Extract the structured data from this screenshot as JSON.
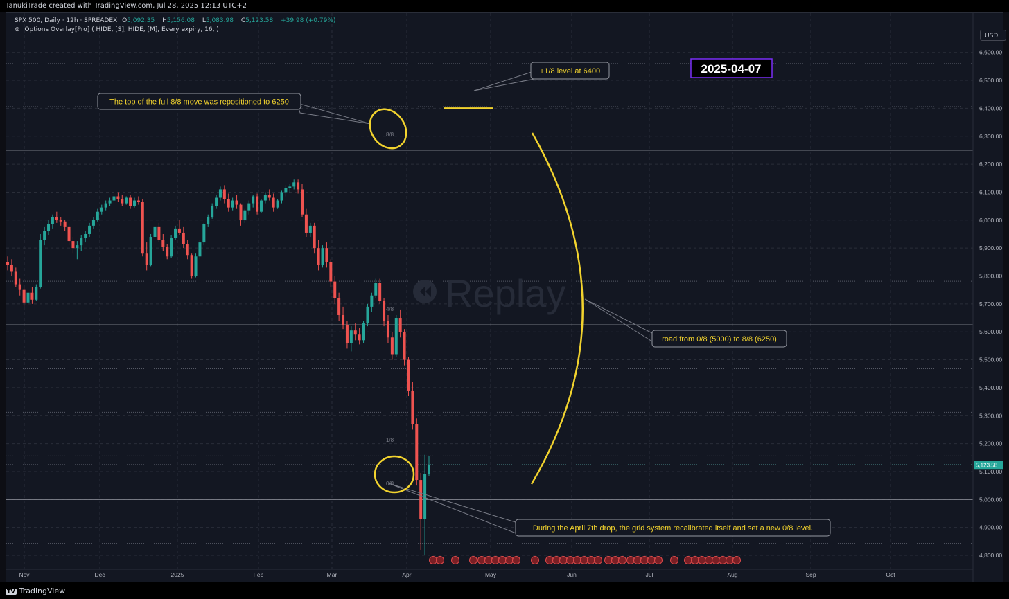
{
  "header": {
    "created_by": "TanukiTrade created with TradingView.com, Jul 28, 2025 12:13 UTC+2"
  },
  "legend": {
    "symbol": "SPX 500, Daily · 12h · SPREADEX",
    "open_label": "O",
    "open": "5,092.35",
    "high_label": "H",
    "high": "5,156.08",
    "low_label": "L",
    "low": "5,083.98",
    "close_label": "C",
    "close": "5,123.58",
    "change": "+39.98 (+0.79%)",
    "indicator": "Options Overlay[Pro] ( HIDE, [S], HIDE, [M], Every expiry, 16, )"
  },
  "currency": "USD",
  "watermark": "Replay",
  "date_box": "2025-04-07",
  "colors": {
    "up": "#26a69a",
    "down": "#ef5350",
    "annotation": "#f2d32e",
    "date_box_border": "#7b2ff7",
    "level_line": "#9598a1",
    "price_tag": "#26a69a"
  },
  "annotations": {
    "top_note": "The top of the full 8/8 move was repositioned to 6250",
    "plus_level": "+1/8 level at 6400",
    "road": "road from 0/8 (5000) to 8/8 (6250)",
    "bottom_note": "During the April 7th drop, the grid system recalibrated itself and set a new 0/8 level."
  },
  "grid_labels": [
    "8/8",
    "4/8",
    "1/8",
    "0/8"
  ],
  "footer": {
    "brand": "TradingView"
  },
  "chart_data": {
    "type": "candlestick",
    "symbol": "SPX 500",
    "interval": "Daily",
    "y_ticks": [
      4800,
      4900,
      5000,
      5100,
      5200,
      5300,
      5400,
      5500,
      5600,
      5700,
      5800,
      5900,
      6000,
      6100,
      6200,
      6300,
      6400,
      6500,
      6600
    ],
    "y_tick_labels": [
      "4,800.00",
      "4,900.00",
      "5,000.00",
      "5,100.00",
      "5,200.00",
      "5,300.00",
      "5,400.00",
      "5,500.00",
      "5,600.00",
      "5,700.00",
      "5,800.00",
      "5,900.00",
      "6,000.00",
      "6,100.00",
      "6,200.00",
      "6,300.00",
      "6,400.00",
      "6,500.00",
      "6,600.00"
    ],
    "x_labels": [
      "Nov",
      "Dec",
      "2025",
      "Feb",
      "Mar",
      "Apr",
      "May",
      "Jun",
      "Jul",
      "Aug",
      "Sep",
      "Oct"
    ],
    "last_price": "5,123.58",
    "horizontal_levels": [
      {
        "label": "8/8",
        "value": 6250
      },
      {
        "label": "4/8",
        "value": 5625
      },
      {
        "label": "0/8",
        "value": 5000
      }
    ],
    "dotted_levels": [
      6560,
      6406,
      5781,
      5468,
      5312,
      5156,
      5125,
      4843
    ],
    "plus_level_value": 6400,
    "series": [
      {
        "name": "SPX 500",
        "ohlc": [
          [
            5850,
            5870,
            5820,
            5840
          ],
          [
            5840,
            5860,
            5800,
            5815
          ],
          [
            5815,
            5830,
            5760,
            5770
          ],
          [
            5770,
            5790,
            5730,
            5750
          ],
          [
            5750,
            5760,
            5690,
            5705
          ],
          [
            5705,
            5745,
            5700,
            5740
          ],
          [
            5740,
            5760,
            5700,
            5715
          ],
          [
            5715,
            5770,
            5710,
            5760
          ],
          [
            5760,
            5950,
            5755,
            5930
          ],
          [
            5930,
            5975,
            5910,
            5960
          ],
          [
            5960,
            6000,
            5945,
            5985
          ],
          [
            5985,
            6020,
            5970,
            6010
          ],
          [
            6010,
            6030,
            5990,
            6000
          ],
          [
            6000,
            6010,
            5980,
            5995
          ],
          [
            5995,
            6000,
            5960,
            5975
          ],
          [
            5975,
            5985,
            5910,
            5925
          ],
          [
            5925,
            5940,
            5880,
            5900
          ],
          [
            5900,
            5925,
            5860,
            5910
          ],
          [
            5910,
            5945,
            5890,
            5935
          ],
          [
            5935,
            5960,
            5920,
            5950
          ],
          [
            5950,
            5990,
            5940,
            5980
          ],
          [
            5980,
            6010,
            5970,
            6000
          ],
          [
            6000,
            6040,
            5995,
            6030
          ],
          [
            6030,
            6055,
            6020,
            6045
          ],
          [
            6045,
            6070,
            6035,
            6060
          ],
          [
            6060,
            6080,
            6050,
            6070
          ],
          [
            6070,
            6095,
            6060,
            6085
          ],
          [
            6085,
            6100,
            6065,
            6075
          ],
          [
            6075,
            6090,
            6050,
            6060
          ],
          [
            6060,
            6085,
            6055,
            6080
          ],
          [
            6080,
            6090,
            6040,
            6050
          ],
          [
            6050,
            6080,
            6045,
            6070
          ],
          [
            6070,
            6085,
            6055,
            6065
          ],
          [
            6065,
            6075,
            5870,
            5880
          ],
          [
            5880,
            5920,
            5820,
            5840
          ],
          [
            5840,
            5950,
            5835,
            5940
          ],
          [
            5940,
            5985,
            5930,
            5975
          ],
          [
            5975,
            5990,
            5920,
            5930
          ],
          [
            5930,
            5950,
            5890,
            5905
          ],
          [
            5905,
            5915,
            5860,
            5870
          ],
          [
            5870,
            5945,
            5865,
            5935
          ],
          [
            5935,
            5980,
            5930,
            5970
          ],
          [
            5970,
            6000,
            5945,
            5955
          ],
          [
            5955,
            5975,
            5900,
            5915
          ],
          [
            5915,
            5930,
            5860,
            5875
          ],
          [
            5875,
            5880,
            5790,
            5800
          ],
          [
            5800,
            5880,
            5795,
            5870
          ],
          [
            5870,
            5930,
            5860,
            5920
          ],
          [
            5920,
            5990,
            5910,
            5985
          ],
          [
            5985,
            6020,
            5975,
            6010
          ],
          [
            6010,
            6060,
            6005,
            6050
          ],
          [
            6050,
            6090,
            6040,
            6080
          ],
          [
            6080,
            6120,
            6070,
            6110
          ],
          [
            6110,
            6125,
            6060,
            6075
          ],
          [
            6075,
            6095,
            6030,
            6045
          ],
          [
            6045,
            6080,
            6035,
            6070
          ],
          [
            6070,
            6090,
            6040,
            6055
          ],
          [
            6055,
            6060,
            5980,
            6000
          ],
          [
            6000,
            6040,
            5990,
            6035
          ],
          [
            6035,
            6070,
            6020,
            6060
          ],
          [
            6060,
            6090,
            6045,
            6085
          ],
          [
            6085,
            6095,
            6020,
            6030
          ],
          [
            6030,
            6075,
            6025,
            6070
          ],
          [
            6070,
            6100,
            6060,
            6090
          ],
          [
            6090,
            6110,
            6070,
            6080
          ],
          [
            6080,
            6095,
            6030,
            6045
          ],
          [
            6045,
            6075,
            6040,
            6070
          ],
          [
            6070,
            6105,
            6060,
            6100
          ],
          [
            6100,
            6125,
            6085,
            6115
          ],
          [
            6115,
            6130,
            6100,
            6120
          ],
          [
            6120,
            6145,
            6110,
            6135
          ],
          [
            6135,
            6145,
            6095,
            6110
          ],
          [
            6110,
            6130,
            6010,
            6020
          ],
          [
            6020,
            6040,
            5940,
            5955
          ],
          [
            5955,
            5990,
            5940,
            5980
          ],
          [
            5980,
            5990,
            5880,
            5900
          ],
          [
            5900,
            5930,
            5820,
            5840
          ],
          [
            5840,
            5910,
            5830,
            5900
          ],
          [
            5900,
            5920,
            5830,
            5850
          ],
          [
            5850,
            5860,
            5760,
            5780
          ],
          [
            5780,
            5800,
            5700,
            5720
          ],
          [
            5720,
            5740,
            5640,
            5660
          ],
          [
            5660,
            5690,
            5610,
            5625
          ],
          [
            5625,
            5640,
            5540,
            5560
          ],
          [
            5560,
            5620,
            5530,
            5605
          ],
          [
            5605,
            5630,
            5570,
            5590
          ],
          [
            5590,
            5615,
            5555,
            5570
          ],
          [
            5570,
            5640,
            5560,
            5630
          ],
          [
            5630,
            5700,
            5620,
            5690
          ],
          [
            5690,
            5740,
            5670,
            5730
          ],
          [
            5730,
            5790,
            5720,
            5775
          ],
          [
            5775,
            5790,
            5700,
            5710
          ],
          [
            5710,
            5720,
            5620,
            5640
          ],
          [
            5640,
            5660,
            5560,
            5580
          ],
          [
            5580,
            5600,
            5500,
            5520
          ],
          [
            5520,
            5660,
            5510,
            5650
          ],
          [
            5650,
            5680,
            5580,
            5600
          ],
          [
            5600,
            5610,
            5480,
            5500
          ],
          [
            5500,
            5510,
            5370,
            5390
          ],
          [
            5390,
            5420,
            5250,
            5270
          ],
          [
            5270,
            5290,
            5050,
            5070
          ],
          [
            5070,
            5095,
            4820,
            4930
          ],
          [
            4930,
            5160,
            4800,
            5092
          ],
          [
            5092,
            5156,
            5084,
            5124
          ]
        ]
      }
    ]
  }
}
